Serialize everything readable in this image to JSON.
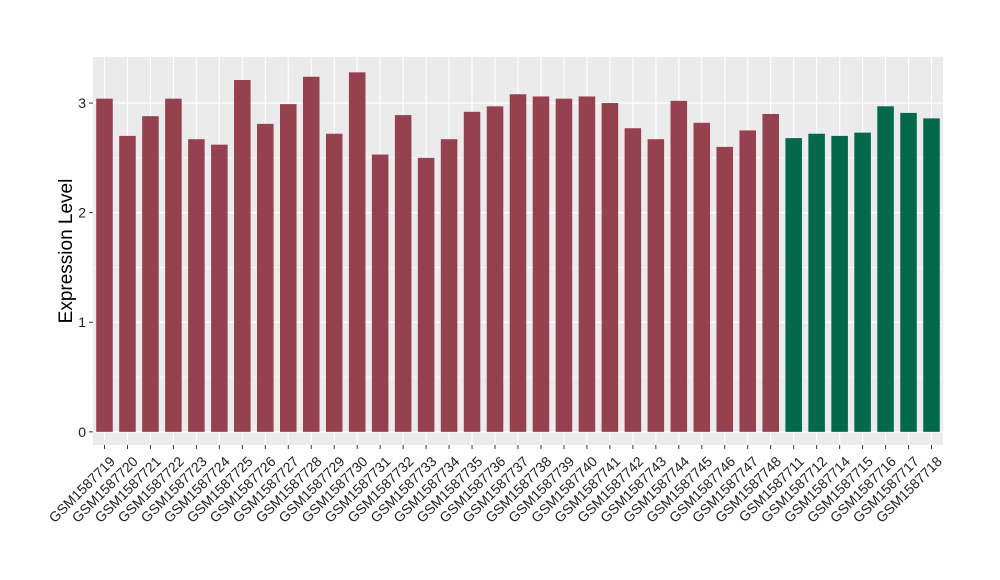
{
  "chart_data": {
    "type": "bar",
    "title": "",
    "xlabel": "",
    "ylabel": "Expression Level",
    "ylim": [
      -0.12,
      3.42
    ],
    "yticks": [
      0,
      1,
      2,
      3
    ],
    "grid": true,
    "legend": "none",
    "panel_color": "#EBEBEB",
    "gridline_color": "#FFFFFF",
    "categories": [
      "GSM1587719",
      "GSM1587720",
      "GSM1587721",
      "GSM1587722",
      "GSM1587723",
      "GSM1587724",
      "GSM1587725",
      "GSM1587726",
      "GSM1587727",
      "GSM1587728",
      "GSM1587729",
      "GSM1587730",
      "GSM1587731",
      "GSM1587732",
      "GSM1587733",
      "GSM1587734",
      "GSM1587735",
      "GSM1587736",
      "GSM1587737",
      "GSM1587738",
      "GSM1587739",
      "GSM1587740",
      "GSM1587741",
      "GSM1587742",
      "GSM1587743",
      "GSM1587744",
      "GSM1587745",
      "GSM1587746",
      "GSM1587747",
      "GSM1587748",
      "GSM1587711",
      "GSM1587712",
      "GSM1587714",
      "GSM1587715",
      "GSM1587716",
      "GSM1587717",
      "GSM1587718"
    ],
    "values": [
      3.04,
      2.7,
      2.88,
      3.04,
      2.67,
      2.62,
      3.21,
      2.81,
      2.99,
      3.24,
      2.72,
      3.28,
      2.53,
      2.89,
      2.5,
      2.67,
      2.92,
      2.97,
      3.08,
      3.06,
      3.04,
      3.06,
      3.0,
      2.77,
      2.67,
      3.02,
      2.82,
      2.6,
      2.75,
      2.9,
      2.68,
      2.72,
      2.7,
      2.73,
      2.97,
      2.91,
      2.86
    ],
    "group_colors": [
      "#96414F",
      "#04694A"
    ],
    "groups": [
      0,
      0,
      0,
      0,
      0,
      0,
      0,
      0,
      0,
      0,
      0,
      0,
      0,
      0,
      0,
      0,
      0,
      0,
      0,
      0,
      0,
      0,
      0,
      0,
      0,
      0,
      0,
      0,
      0,
      0,
      1,
      1,
      1,
      1,
      1,
      1,
      1
    ]
  }
}
